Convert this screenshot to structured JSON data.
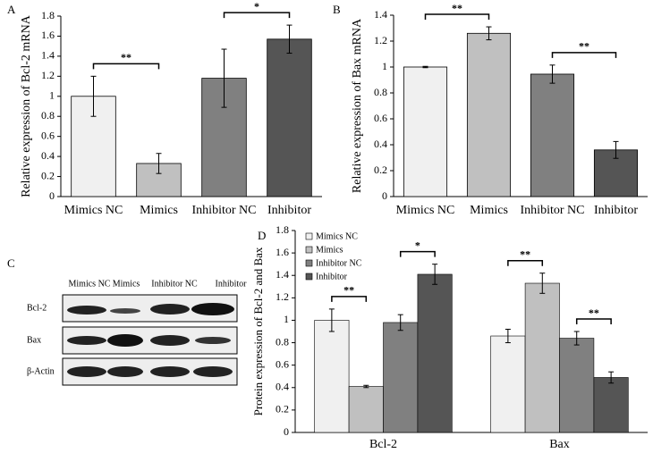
{
  "chart_data": [
    {
      "type": "bar",
      "panel": "A",
      "ylabel": "Relative expression of Bcl-2 mRNA",
      "categories": [
        "Mimics NC",
        "Mimics",
        "Inhibitor NC",
        "Inhibitor"
      ],
      "values": [
        1.0,
        0.33,
        1.18,
        1.57
      ],
      "errors": [
        0.2,
        0.1,
        0.29,
        0.14
      ],
      "colors": [
        "#f0f0f0",
        "#c0c0c0",
        "#808080",
        "#555555"
      ],
      "ylim": [
        0,
        1.8
      ],
      "yticks": [
        0,
        0.2,
        0.4,
        0.6,
        0.8,
        1,
        1.2,
        1.4,
        1.6,
        1.8
      ],
      "annotations": [
        {
          "text": "**",
          "from": 0,
          "to": 1
        },
        {
          "text": "*",
          "from": 2,
          "to": 3
        }
      ]
    },
    {
      "type": "bar",
      "panel": "B",
      "ylabel": "Relative expression of Bax mRNA",
      "categories": [
        "Mimics NC",
        "Mimics",
        "Inhibitor NC",
        "Inhibitor"
      ],
      "values": [
        1.0,
        1.26,
        0.945,
        0.36
      ],
      "errors": [
        0.005,
        0.05,
        0.07,
        0.065
      ],
      "colors": [
        "#f0f0f0",
        "#c0c0c0",
        "#808080",
        "#555555"
      ],
      "ylim": [
        0,
        1.4
      ],
      "yticks": [
        0,
        0.2,
        0.4,
        0.6,
        0.8,
        1,
        1.2,
        1.4
      ],
      "annotations": [
        {
          "text": "**",
          "from": 0,
          "to": 1
        },
        {
          "text": "**",
          "from": 2,
          "to": 3
        }
      ]
    },
    {
      "type": "grouped-bar",
      "panel": "D",
      "ylabel": "Protein expression of Bcl-2 and Bax",
      "categories": [
        "Bcl-2",
        "Bax"
      ],
      "series": [
        {
          "name": "Mimics NC",
          "color": "#f0f0f0",
          "values": [
            1.0,
            0.86
          ],
          "errors": [
            0.1,
            0.06
          ]
        },
        {
          "name": "Mimics",
          "color": "#c0c0c0",
          "values": [
            0.41,
            1.33
          ],
          "errors": [
            0.01,
            0.09
          ]
        },
        {
          "name": "Inhibitor NC",
          "color": "#808080",
          "values": [
            0.98,
            0.84
          ],
          "errors": [
            0.07,
            0.06
          ]
        },
        {
          "name": "Inhibitor",
          "color": "#555555",
          "values": [
            1.41,
            0.49
          ],
          "errors": [
            0.09,
            0.05
          ]
        }
      ],
      "ylim": [
        0,
        1.8
      ],
      "yticks": [
        0,
        0.2,
        0.4,
        0.6,
        0.8,
        1,
        1.2,
        1.4,
        1.6,
        1.8
      ],
      "legend": "upper left",
      "annotations": [
        {
          "category": 0,
          "text": "**",
          "from": 0,
          "to": 1
        },
        {
          "category": 0,
          "text": "*",
          "from": 2,
          "to": 3
        },
        {
          "category": 1,
          "text": "**",
          "from": 0,
          "to": 1
        },
        {
          "category": 1,
          "text": "**",
          "from": 2,
          "to": 3
        }
      ]
    }
  ],
  "blot": {
    "panel": "C",
    "columns": [
      "Mimics NC",
      "Mimics",
      "Inhibitor NC",
      "Inhibitor"
    ],
    "rows": [
      "Bcl-2",
      "Bax",
      "β-Actin"
    ]
  }
}
